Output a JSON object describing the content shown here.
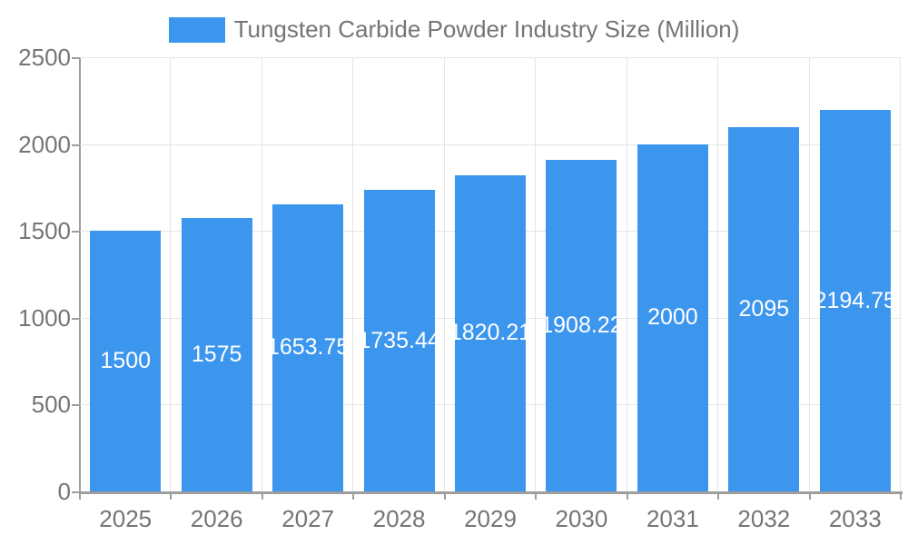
{
  "chart_data": {
    "type": "bar",
    "title": "Tungsten Carbide Powder Industry Size (Million)",
    "legend": "Tungsten Carbide Powder Industry Size (Million)",
    "legend_position": "top-center",
    "categories": [
      "2025",
      "2026",
      "2027",
      "2028",
      "2029",
      "2030",
      "2031",
      "2032",
      "2033"
    ],
    "values": [
      1500,
      1575,
      1653.75,
      1735.44,
      1820.21,
      1908.22,
      2000,
      2095,
      2194.75
    ],
    "value_labels": [
      "1500",
      "1575",
      "1653.75",
      "1735.44",
      "1820.21",
      "1908.22",
      "2000",
      "2095",
      "2194.75"
    ],
    "xlabel": "",
    "ylabel": "",
    "ylim": [
      0,
      2500
    ],
    "yticks": [
      0,
      500,
      1000,
      1500,
      2000,
      2500
    ],
    "grid": true,
    "colors": {
      "bar": "#3d96ee",
      "value_label": "#ffffff",
      "axis_line": "#9e9e9e",
      "grid_line": "#e5e5e5",
      "tick_label": "#757575",
      "legend_text": "#757575",
      "background": "#ffffff"
    }
  }
}
